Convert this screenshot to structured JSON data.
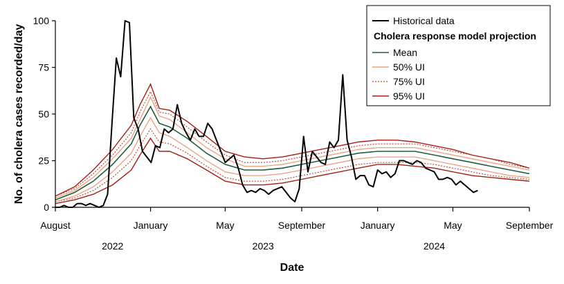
{
  "chart_data": {
    "type": "line",
    "title": "",
    "xlabel": "Date",
    "ylabel": "No. of cholera cases recorded/day",
    "x_range": [
      "2022-08-01",
      "2024-09-01"
    ],
    "ylim": [
      0,
      100
    ],
    "yticks": [
      0,
      25,
      50,
      75,
      100
    ],
    "xticks": [
      {
        "date": "2022-08-01",
        "label": "August"
      },
      {
        "date": "2023-01-01",
        "label": "January"
      },
      {
        "date": "2023-05-01",
        "label": "May"
      },
      {
        "date": "2023-09-01",
        "label": "September"
      },
      {
        "date": "2024-01-01",
        "label": "January"
      },
      {
        "date": "2024-05-01",
        "label": "May"
      },
      {
        "date": "2024-09-01",
        "label": "September"
      }
    ],
    "year_labels": [
      {
        "date": "2022-11-01",
        "label": "2022"
      },
      {
        "date": "2023-07-01",
        "label": "2023"
      },
      {
        "date": "2024-04-01",
        "label": "2024"
      }
    ],
    "grid": false,
    "legend_position": "top-right",
    "legend": {
      "historical": "Historical data",
      "heading": "Cholera response model projection",
      "mean": "Mean",
      "ui50": "50% UI",
      "ui75": "75% UI",
      "ui95": "95% UI"
    },
    "colors": {
      "historical": "#000000",
      "mean": "#1e5c3a",
      "ui50": "#e8a07c",
      "ui75": "#c0392b",
      "ui95": "#a31e12"
    },
    "historical": {
      "x": [
        "2022-08-01",
        "2022-08-08",
        "2022-08-15",
        "2022-08-22",
        "2022-08-29",
        "2022-09-05",
        "2022-09-12",
        "2022-09-19",
        "2022-09-26",
        "2022-10-03",
        "2022-10-10",
        "2022-10-17",
        "2022-10-24",
        "2022-10-31",
        "2022-11-07",
        "2022-11-14",
        "2022-11-21",
        "2022-11-28",
        "2022-12-05",
        "2022-12-12",
        "2022-12-19",
        "2022-12-26",
        "2023-01-02",
        "2023-01-09",
        "2023-01-16",
        "2023-01-23",
        "2023-01-30",
        "2023-02-06",
        "2023-02-13",
        "2023-02-20",
        "2023-02-27",
        "2023-03-06",
        "2023-03-13",
        "2023-03-20",
        "2023-03-27",
        "2023-04-03",
        "2023-04-10",
        "2023-04-17",
        "2023-04-24",
        "2023-05-01",
        "2023-05-08",
        "2023-05-15",
        "2023-05-22",
        "2023-05-29",
        "2023-06-05",
        "2023-06-12",
        "2023-06-19",
        "2023-06-26",
        "2023-07-03",
        "2023-07-10",
        "2023-07-17",
        "2023-07-24",
        "2023-07-31",
        "2023-08-07",
        "2023-08-14",
        "2023-08-21",
        "2023-08-28",
        "2023-09-04",
        "2023-09-11",
        "2023-09-18",
        "2023-09-25",
        "2023-10-02",
        "2023-10-09",
        "2023-10-16",
        "2023-10-23",
        "2023-10-30",
        "2023-11-06",
        "2023-11-13",
        "2023-11-20",
        "2023-11-27",
        "2023-12-04",
        "2023-12-11",
        "2023-12-18",
        "2023-12-25",
        "2024-01-01",
        "2024-01-08",
        "2024-01-15",
        "2024-01-22",
        "2024-01-29",
        "2024-02-05",
        "2024-02-12",
        "2024-02-19",
        "2024-02-26",
        "2024-03-04",
        "2024-03-11",
        "2024-03-18",
        "2024-03-25",
        "2024-04-01",
        "2024-04-08",
        "2024-04-15",
        "2024-04-22",
        "2024-04-29",
        "2024-05-06",
        "2024-05-13",
        "2024-05-20",
        "2024-05-27",
        "2024-06-03",
        "2024-06-10"
      ],
      "y": [
        0,
        0,
        1,
        0,
        0,
        2,
        2,
        1,
        2,
        1,
        0,
        1,
        7,
        45,
        80,
        70,
        100,
        99,
        48,
        42,
        30,
        27,
        24,
        33,
        32,
        42,
        40,
        42,
        55,
        45,
        40,
        36,
        42,
        38,
        38,
        45,
        42,
        36,
        30,
        24,
        26,
        28,
        21,
        12,
        8,
        9,
        8,
        10,
        9,
        7,
        9,
        10,
        11,
        8,
        5,
        3,
        10,
        38,
        19,
        30,
        27,
        24,
        23,
        35,
        32,
        36,
        71,
        36,
        27,
        15,
        17,
        17,
        12,
        11,
        20,
        18,
        19,
        16,
        18,
        25,
        25,
        24,
        23,
        25,
        24,
        21,
        20,
        19,
        15,
        15,
        16,
        15,
        12,
        14,
        12,
        10,
        8,
        9
      ]
    },
    "mean": {
      "x": [
        "2022-08-01",
        "2022-09-01",
        "2022-10-01",
        "2022-11-01",
        "2022-12-01",
        "2022-12-15",
        "2023-01-01",
        "2023-01-15",
        "2023-02-01",
        "2023-03-01",
        "2023-04-01",
        "2023-05-01",
        "2023-06-01",
        "2023-07-01",
        "2023-08-01",
        "2023-09-01",
        "2023-10-01",
        "2023-11-01",
        "2023-12-01",
        "2024-01-01",
        "2024-02-01",
        "2024-03-01",
        "2024-04-01",
        "2024-05-01",
        "2024-06-01",
        "2024-07-01",
        "2024-08-01",
        "2024-09-01"
      ],
      "y": [
        4,
        8,
        14,
        23,
        34,
        44,
        54,
        45,
        43,
        37,
        29,
        23,
        20,
        20,
        21,
        23,
        25,
        27,
        29,
        30,
        30,
        30,
        28,
        26,
        24,
        22,
        20,
        18
      ]
    },
    "ui50": {
      "x": [
        "2022-08-01",
        "2022-09-01",
        "2022-10-01",
        "2022-11-01",
        "2022-12-01",
        "2022-12-15",
        "2023-01-01",
        "2023-01-15",
        "2023-02-01",
        "2023-03-01",
        "2023-04-01",
        "2023-05-01",
        "2023-06-01",
        "2023-07-01",
        "2023-08-01",
        "2023-09-01",
        "2023-10-01",
        "2023-11-01",
        "2023-12-01",
        "2024-01-01",
        "2024-02-01",
        "2024-03-01",
        "2024-04-01",
        "2024-05-01",
        "2024-06-01",
        "2024-07-01",
        "2024-08-01",
        "2024-09-01"
      ],
      "lower": [
        3,
        6,
        11,
        19,
        29,
        38,
        48,
        40,
        38,
        32,
        25,
        19,
        17,
        17,
        18,
        20,
        22,
        24,
        26,
        27,
        27,
        27,
        25,
        23,
        21,
        19,
        17,
        16
      ],
      "upper": [
        5,
        9,
        16,
        26,
        37,
        47,
        59,
        49,
        47,
        40,
        32,
        26,
        22,
        22,
        23,
        25,
        27,
        29,
        31,
        32,
        32,
        32,
        30,
        28,
        26,
        24,
        22,
        20
      ]
    },
    "ui75": {
      "x": [
        "2022-08-01",
        "2022-09-01",
        "2022-10-01",
        "2022-11-01",
        "2022-12-01",
        "2022-12-15",
        "2023-01-01",
        "2023-01-15",
        "2023-02-01",
        "2023-03-01",
        "2023-04-01",
        "2023-05-01",
        "2023-06-01",
        "2023-07-01",
        "2023-08-01",
        "2023-09-01",
        "2023-10-01",
        "2023-11-01",
        "2023-12-01",
        "2024-01-01",
        "2024-02-01",
        "2024-03-01",
        "2024-04-01",
        "2024-05-01",
        "2024-06-01",
        "2024-07-01",
        "2024-08-01",
        "2024-09-01"
      ],
      "lower": [
        3,
        5,
        9,
        16,
        25,
        33,
        42,
        35,
        34,
        29,
        22,
        16,
        14,
        14,
        15,
        17,
        19,
        21,
        23,
        24,
        24,
        24,
        23,
        21,
        19,
        17,
        16,
        15
      ],
      "upper": [
        6,
        10,
        18,
        28,
        40,
        51,
        62,
        51,
        50,
        43,
        35,
        28,
        24,
        24,
        25,
        27,
        29,
        31,
        33,
        34,
        34,
        34,
        32,
        30,
        28,
        26,
        23,
        21
      ]
    },
    "ui95": {
      "x": [
        "2022-08-01",
        "2022-09-01",
        "2022-10-01",
        "2022-11-01",
        "2022-12-01",
        "2022-12-15",
        "2023-01-01",
        "2023-01-15",
        "2023-02-01",
        "2023-03-01",
        "2023-04-01",
        "2023-05-01",
        "2023-06-01",
        "2023-07-01",
        "2023-08-01",
        "2023-09-01",
        "2023-10-01",
        "2023-11-01",
        "2023-12-01",
        "2024-01-01",
        "2024-02-01",
        "2024-03-01",
        "2024-04-01",
        "2024-05-01",
        "2024-06-01",
        "2024-07-01",
        "2024-08-01",
        "2024-09-01"
      ],
      "lower": [
        2,
        4,
        7,
        12,
        20,
        28,
        37,
        30,
        30,
        26,
        20,
        14,
        12,
        12,
        13,
        15,
        17,
        19,
        21,
        23,
        23,
        22,
        21,
        19,
        17,
        16,
        15,
        14
      ],
      "upper": [
        6,
        11,
        20,
        31,
        44,
        55,
        66,
        53,
        52,
        46,
        38,
        30,
        27,
        26,
        27,
        29,
        31,
        33,
        35,
        36,
        36,
        35,
        33,
        31,
        28,
        26,
        24,
        21
      ]
    }
  }
}
